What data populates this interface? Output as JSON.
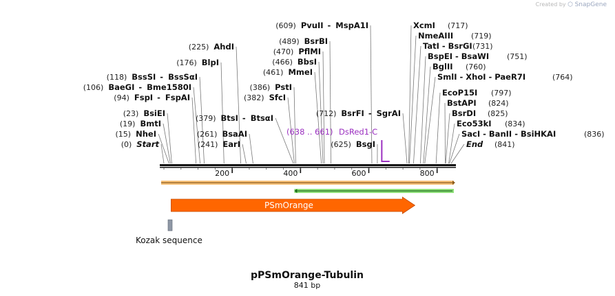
{
  "app": {
    "credit_text": "Created by",
    "brand": "SnapGene"
  },
  "map": {
    "title": "pPSmOrange-Tubulin",
    "length_label": "841 bp",
    "total_length": 841,
    "ruler_ticks": [
      {
        "pos": 200,
        "label": "200"
      },
      {
        "pos": 400,
        "label": "400"
      },
      {
        "pos": 600,
        "label": "600"
      },
      {
        "pos": 800,
        "label": "800"
      }
    ],
    "left_sites": [
      {
        "id": "start",
        "num": "(0)",
        "parts": [
          "Start"
        ],
        "italic": true,
        "pos": 0
      },
      {
        "id": "nhe",
        "num": "(15)",
        "parts": [
          "NheI"
        ],
        "pos": 15
      },
      {
        "id": "bmt",
        "num": "(19)",
        "parts": [
          "BmtI"
        ],
        "pos": 19
      },
      {
        "id": "bsie",
        "num": "(23)",
        "parts": [
          "BsiEI"
        ],
        "pos": 23
      },
      {
        "id": "fsp",
        "num": "(94)",
        "parts": [
          "FspI",
          "FspAI"
        ],
        "pos": 94
      },
      {
        "id": "bae",
        "num": "(106)",
        "parts": [
          "BaeGI",
          "Bme1580I"
        ],
        "pos": 106
      },
      {
        "id": "bss",
        "num": "(118)",
        "parts": [
          "BssSI",
          "BssSαI"
        ],
        "pos": 118
      },
      {
        "id": "blp",
        "num": "(176)",
        "parts": [
          "BlpI"
        ],
        "pos": 176
      },
      {
        "id": "ahd",
        "num": "(225)",
        "parts": [
          "AhdI"
        ],
        "pos": 225
      },
      {
        "id": "ear",
        "num": "(241)",
        "parts": [
          "EarI"
        ],
        "pos": 241
      },
      {
        "id": "bsaa",
        "num": "(261)",
        "parts": [
          "BsaAI"
        ],
        "pos": 261
      },
      {
        "id": "bts",
        "num": "(379)",
        "parts": [
          "BtsI",
          "BtsαI"
        ],
        "pos": 379
      },
      {
        "id": "sfc",
        "num": "(382)",
        "parts": [
          "SfcI"
        ],
        "pos": 382
      },
      {
        "id": "pst",
        "num": "(386)",
        "parts": [
          "PstI"
        ],
        "pos": 386
      },
      {
        "id": "mme",
        "num": "(461)",
        "parts": [
          "MmeI"
        ],
        "pos": 461
      },
      {
        "id": "bbs",
        "num": "(466)",
        "parts": [
          "BbsI"
        ],
        "pos": 466
      },
      {
        "id": "pflm",
        "num": "(470)",
        "parts": [
          "PflMI"
        ],
        "pos": 470
      },
      {
        "id": "bsrb",
        "num": "(489)",
        "parts": [
          "BsrBI"
        ],
        "pos": 489
      },
      {
        "id": "pvu",
        "num": "(609)",
        "parts": [
          "PvuII",
          "MspA1I"
        ],
        "pos": 609
      },
      {
        "id": "bsg",
        "num": "(625)",
        "parts": [
          "BsgI"
        ],
        "pos": 625
      },
      {
        "id": "bsrf",
        "num": "(712)",
        "parts": [
          "BsrFI",
          "SgrAI"
        ],
        "pos": 712
      }
    ],
    "right_sites": [
      {
        "id": "xcm",
        "name": "XcmI",
        "num": "(717)",
        "pos": 717
      },
      {
        "id": "nme",
        "name": "NmeAIII",
        "num": "(719)",
        "pos": 719
      },
      {
        "id": "tat",
        "name": "TatI - BsrGI",
        "num": "(731)",
        "pos": 731
      },
      {
        "id": "bspe",
        "name": "BspEI - BsaWI",
        "num": "(751)",
        "pos": 751
      },
      {
        "id": "bgl",
        "name": "BglII",
        "num": "(760)",
        "pos": 760
      },
      {
        "id": "sml",
        "name": "SmlI - XhoI - PaeR7I",
        "num": "(764)",
        "pos": 764
      },
      {
        "id": "ecop",
        "name": "EcoP15I",
        "num": "(797)",
        "pos": 797
      },
      {
        "id": "bstap",
        "name": "BstAPI",
        "num": "(824)",
        "pos": 824
      },
      {
        "id": "bsrd",
        "name": "BsrDI",
        "num": "(825)",
        "pos": 825
      },
      {
        "id": "eco53",
        "name": "Eco53kI",
        "num": "(834)",
        "pos": 834
      },
      {
        "id": "sac",
        "name": "SacI - BanII - BsiHKAI",
        "num": "(836)",
        "pos": 836
      },
      {
        "id": "end",
        "name": "End",
        "num": "(841)",
        "pos": 841,
        "italic": true
      }
    ],
    "primer": {
      "range": "(638 .. 661)",
      "name": "DsRed1-C",
      "start": 638,
      "end": 661,
      "color": "#9b30c0"
    },
    "features": {
      "orange_track": {
        "start": 0,
        "end": 841,
        "color": "#f7c27a",
        "edge": "#8a5a1a"
      },
      "green_track": {
        "start": 386,
        "end": 841,
        "color": "#8fe07a",
        "edge": "#1a6a1a"
      },
      "psmorange": {
        "label": "PSmOrange",
        "start": 15,
        "end": 739,
        "color": "#ff6600"
      },
      "kozak": {
        "label": "Kozak sequence",
        "start": 8,
        "end": 14,
        "color": "#8f98a6"
      }
    }
  }
}
